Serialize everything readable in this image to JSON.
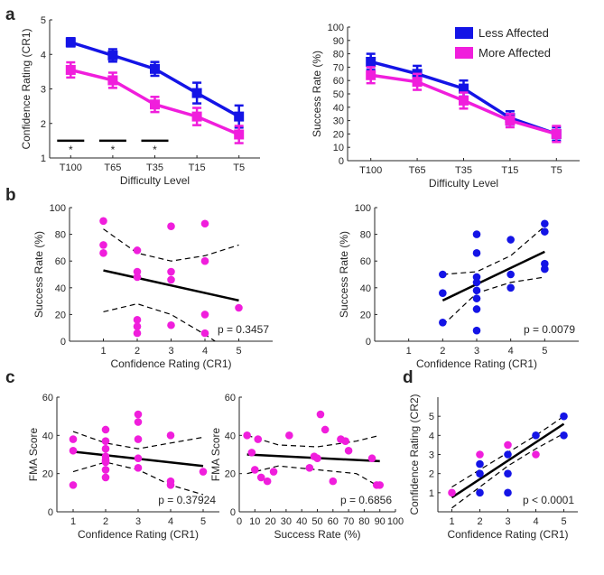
{
  "colors": {
    "less": "#1414e6",
    "more": "#f01edc",
    "axis": "#262626",
    "fit": "#000000"
  },
  "panel_labels": {
    "a": "a",
    "b": "b",
    "c": "c",
    "d": "d"
  },
  "chart_data": [
    {
      "id": "a1",
      "type": "line",
      "categories": [
        "T100",
        "T65",
        "T35",
        "T15",
        "T5"
      ],
      "series": [
        {
          "name": "Less Affected",
          "color_key": "less",
          "values": [
            4.35,
            3.97,
            3.58,
            2.88,
            2.2
          ],
          "err": [
            0.12,
            0.18,
            0.2,
            0.3,
            0.32
          ]
        },
        {
          "name": "More Affected",
          "color_key": "more",
          "values": [
            3.55,
            3.25,
            2.55,
            2.2,
            1.68
          ],
          "err": [
            0.22,
            0.22,
            0.22,
            0.25,
            0.25
          ]
        }
      ],
      "significance": [
        {
          "category": 0,
          "label": "*"
        },
        {
          "category": 1,
          "label": "*"
        },
        {
          "category": 2,
          "label": "*"
        }
      ],
      "xlabel": "Difficulty Level",
      "ylabel": "Confidence Rating (CR1)",
      "ylim": [
        1,
        5
      ],
      "yticks": [
        1,
        2,
        3,
        4,
        5
      ]
    },
    {
      "id": "a2",
      "type": "line",
      "categories": [
        "T100",
        "T65",
        "T35",
        "T15",
        "T5"
      ],
      "series": [
        {
          "name": "Less Affected",
          "color_key": "less",
          "values": [
            74,
            65,
            54,
            32,
            20
          ],
          "err": [
            6,
            6,
            6,
            5,
            5
          ]
        },
        {
          "name": "More Affected",
          "color_key": "more",
          "values": [
            64,
            59,
            45,
            30,
            20
          ],
          "err": [
            6,
            6,
            6,
            5,
            6
          ]
        }
      ],
      "legend": [
        "Less Affected",
        "More Affected"
      ],
      "legend_position": "top-right",
      "xlabel": "Difficulty Level",
      "ylabel": "Success Rate (%)",
      "ylim": [
        0,
        100
      ],
      "yticks": [
        0,
        10,
        20,
        30,
        40,
        50,
        60,
        70,
        80,
        90,
        100
      ]
    },
    {
      "id": "b1",
      "type": "scatter",
      "color_key": "more",
      "points": [
        [
          1,
          90
        ],
        [
          1,
          72
        ],
        [
          1,
          66
        ],
        [
          2,
          68
        ],
        [
          2,
          52
        ],
        [
          2,
          48
        ],
        [
          2,
          16
        ],
        [
          2,
          11
        ],
        [
          2,
          6
        ],
        [
          3,
          86
        ],
        [
          3,
          52
        ],
        [
          3,
          46
        ],
        [
          3,
          12
        ],
        [
          4,
          88
        ],
        [
          4,
          60
        ],
        [
          4,
          20
        ],
        [
          4,
          6
        ],
        [
          5,
          25
        ]
      ],
      "fit": {
        "x": [
          1,
          5
        ],
        "y": [
          53,
          30.5
        ]
      },
      "ci_upper": {
        "x": [
          1,
          2,
          3,
          4,
          5
        ],
        "y": [
          84,
          66,
          60,
          64,
          72
        ]
      },
      "ci_lower": {
        "x": [
          1,
          2,
          3,
          4,
          4.3
        ],
        "y": [
          22,
          28,
          20,
          5,
          0
        ]
      },
      "annotation": "p = 0.3457",
      "xlabel": "Confidence Rating (CR1)",
      "ylabel": "Success Rate (%)",
      "xlim": [
        0,
        6
      ],
      "xticks": [
        1,
        2,
        3,
        4,
        5
      ],
      "ylim": [
        0,
        100
      ],
      "yticks": [
        0,
        20,
        40,
        60,
        80,
        100
      ]
    },
    {
      "id": "b2",
      "type": "scatter",
      "color_key": "less",
      "points": [
        [
          2,
          50
        ],
        [
          2,
          36
        ],
        [
          2,
          14
        ],
        [
          3,
          80
        ],
        [
          3,
          66
        ],
        [
          3,
          48
        ],
        [
          3,
          44
        ],
        [
          3,
          38
        ],
        [
          3,
          32
        ],
        [
          3,
          24
        ],
        [
          3,
          8
        ],
        [
          4,
          76
        ],
        [
          4,
          50
        ],
        [
          4,
          40
        ],
        [
          5,
          88
        ],
        [
          5,
          82
        ],
        [
          5,
          58
        ],
        [
          5,
          54
        ]
      ],
      "fit": {
        "x": [
          2,
          5
        ],
        "y": [
          30.5,
          67
        ]
      },
      "ci_upper": {
        "x": [
          2,
          3,
          4,
          5
        ],
        "y": [
          50,
          52,
          64,
          86
        ]
      },
      "ci_lower": {
        "x": [
          2,
          3,
          4,
          5
        ],
        "y": [
          12,
          36,
          44,
          48
        ]
      },
      "annotation": "p = 0.0079",
      "xlabel": "Confidence Rating (CR1)",
      "ylabel": "Success Rate (%)",
      "xlim": [
        0,
        6
      ],
      "xticks": [
        1,
        2,
        3,
        4,
        5
      ],
      "ylim": [
        0,
        100
      ],
      "yticks": [
        0,
        20,
        40,
        60,
        80,
        100
      ]
    },
    {
      "id": "c1",
      "type": "scatter",
      "color_key": "more",
      "points": [
        [
          1,
          38
        ],
        [
          1,
          32
        ],
        [
          1,
          14
        ],
        [
          2,
          43
        ],
        [
          2,
          37
        ],
        [
          2,
          33
        ],
        [
          2,
          29
        ],
        [
          2,
          27
        ],
        [
          2,
          26
        ],
        [
          2,
          22
        ],
        [
          2,
          18
        ],
        [
          3,
          51
        ],
        [
          3,
          47
        ],
        [
          3,
          38
        ],
        [
          3,
          28
        ],
        [
          3,
          23
        ],
        [
          4,
          40
        ],
        [
          4,
          16
        ],
        [
          4,
          14
        ],
        [
          5,
          21
        ]
      ],
      "fit": {
        "x": [
          1,
          5
        ],
        "y": [
          31.5,
          24
        ]
      },
      "ci_upper": {
        "x": [
          1,
          2,
          3,
          4,
          5
        ],
        "y": [
          42,
          36,
          33,
          36,
          39
        ]
      },
      "ci_lower": {
        "x": [
          1,
          2,
          3,
          4,
          5
        ],
        "y": [
          21,
          26,
          22,
          14,
          9
        ]
      },
      "annotation": "p = 0.37924",
      "xlabel": "Confidence Rating (CR1)",
      "ylabel": "FMA Score",
      "xlim": [
        0.5,
        5.5
      ],
      "xticks": [
        1,
        2,
        3,
        4,
        5
      ],
      "ylim": [
        0,
        60
      ],
      "yticks": [
        0,
        20,
        40,
        60
      ]
    },
    {
      "id": "c2",
      "type": "scatter",
      "color_key": "more",
      "points": [
        [
          5,
          40
        ],
        [
          8,
          31
        ],
        [
          10,
          22
        ],
        [
          12,
          38
        ],
        [
          14,
          18
        ],
        [
          18,
          16
        ],
        [
          22,
          21
        ],
        [
          32,
          40
        ],
        [
          45,
          23
        ],
        [
          48,
          29
        ],
        [
          50,
          28
        ],
        [
          52,
          51
        ],
        [
          55,
          43
        ],
        [
          60,
          16
        ],
        [
          65,
          38
        ],
        [
          68,
          37
        ],
        [
          70,
          32
        ],
        [
          85,
          28
        ],
        [
          88,
          14
        ],
        [
          90,
          14
        ]
      ],
      "fit": {
        "x": [
          5,
          90
        ],
        "y": [
          30,
          26.5
        ]
      },
      "ci_upper": {
        "x": [
          5,
          25,
          50,
          75,
          90
        ],
        "y": [
          40,
          35,
          34,
          37,
          40
        ]
      },
      "ci_lower": {
        "x": [
          5,
          25,
          50,
          75,
          90
        ],
        "y": [
          20,
          24,
          22,
          20,
          13
        ]
      },
      "annotation": "p = 0.6856",
      "xlabel": "Success Rate (%)",
      "ylabel": "FMA Score",
      "xlim": [
        0,
        100
      ],
      "xticks": [
        0,
        10,
        20,
        30,
        40,
        50,
        60,
        70,
        80,
        90,
        100
      ],
      "ylim": [
        0,
        60
      ],
      "yticks": [
        0,
        20,
        40,
        60
      ]
    },
    {
      "id": "d",
      "type": "scatter",
      "points": [
        [
          1,
          1,
          "more"
        ],
        [
          2,
          3,
          "more"
        ],
        [
          2,
          2.5,
          "less"
        ],
        [
          2,
          2,
          "less"
        ],
        [
          2,
          1,
          "less"
        ],
        [
          3,
          3.5,
          "more"
        ],
        [
          3,
          3,
          "less"
        ],
        [
          3,
          2,
          "less"
        ],
        [
          3,
          1,
          "less"
        ],
        [
          4,
          4,
          "less"
        ],
        [
          4,
          3,
          "more"
        ],
        [
          5,
          5,
          "less"
        ],
        [
          5,
          4,
          "less"
        ]
      ],
      "fit": {
        "x": [
          1,
          5
        ],
        "y": [
          0.75,
          4.6
        ]
      },
      "ci_upper": {
        "x": [
          1,
          2,
          3,
          4,
          5
        ],
        "y": [
          1.3,
          2.2,
          3.1,
          4.0,
          5.0
        ]
      },
      "ci_lower": {
        "x": [
          1,
          2,
          3,
          4,
          5
        ],
        "y": [
          0.2,
          1.3,
          2.4,
          3.3,
          4.1
        ]
      },
      "annotation": "p < 0.0001",
      "xlabel": "Confidence Rating (CR1)",
      "ylabel": "Confidence Rating (CR2)",
      "xlim": [
        0.5,
        5.5
      ],
      "xticks": [
        1,
        2,
        3,
        4,
        5
      ],
      "ylim": [
        0,
        6
      ],
      "yticks": [
        1,
        2,
        3,
        4,
        5
      ]
    }
  ]
}
